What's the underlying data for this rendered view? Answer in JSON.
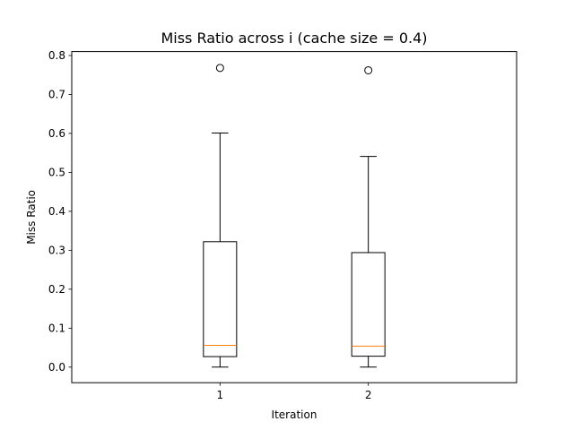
{
  "chart_data": {
    "type": "box",
    "title": "Miss Ratio across i (cache size = 0.4)",
    "xlabel": "Iteration",
    "ylabel": "Miss Ratio",
    "categories": [
      "1",
      "2"
    ],
    "ylim": [
      -0.04,
      0.81
    ],
    "yticks": [
      0.0,
      0.1,
      0.2,
      0.3,
      0.4,
      0.5,
      0.6,
      0.7,
      0.8
    ],
    "ytick_labels": [
      "0.0",
      "0.1",
      "0.2",
      "0.3",
      "0.4",
      "0.5",
      "0.6",
      "0.7",
      "0.8"
    ],
    "grid": false,
    "boxes": [
      {
        "category": "1",
        "whisker_low": 0.0,
        "q1": 0.027,
        "median": 0.056,
        "q3": 0.322,
        "whisker_high": 0.601,
        "outliers": [
          0.768
        ]
      },
      {
        "category": "2",
        "whisker_low": 0.0,
        "q1": 0.028,
        "median": 0.054,
        "q3": 0.294,
        "whisker_high": 0.541,
        "outliers": [
          0.762
        ]
      }
    ],
    "colors": {
      "box": "#000000",
      "median": "#ff7f0e",
      "outlier_edge": "#000000"
    }
  }
}
